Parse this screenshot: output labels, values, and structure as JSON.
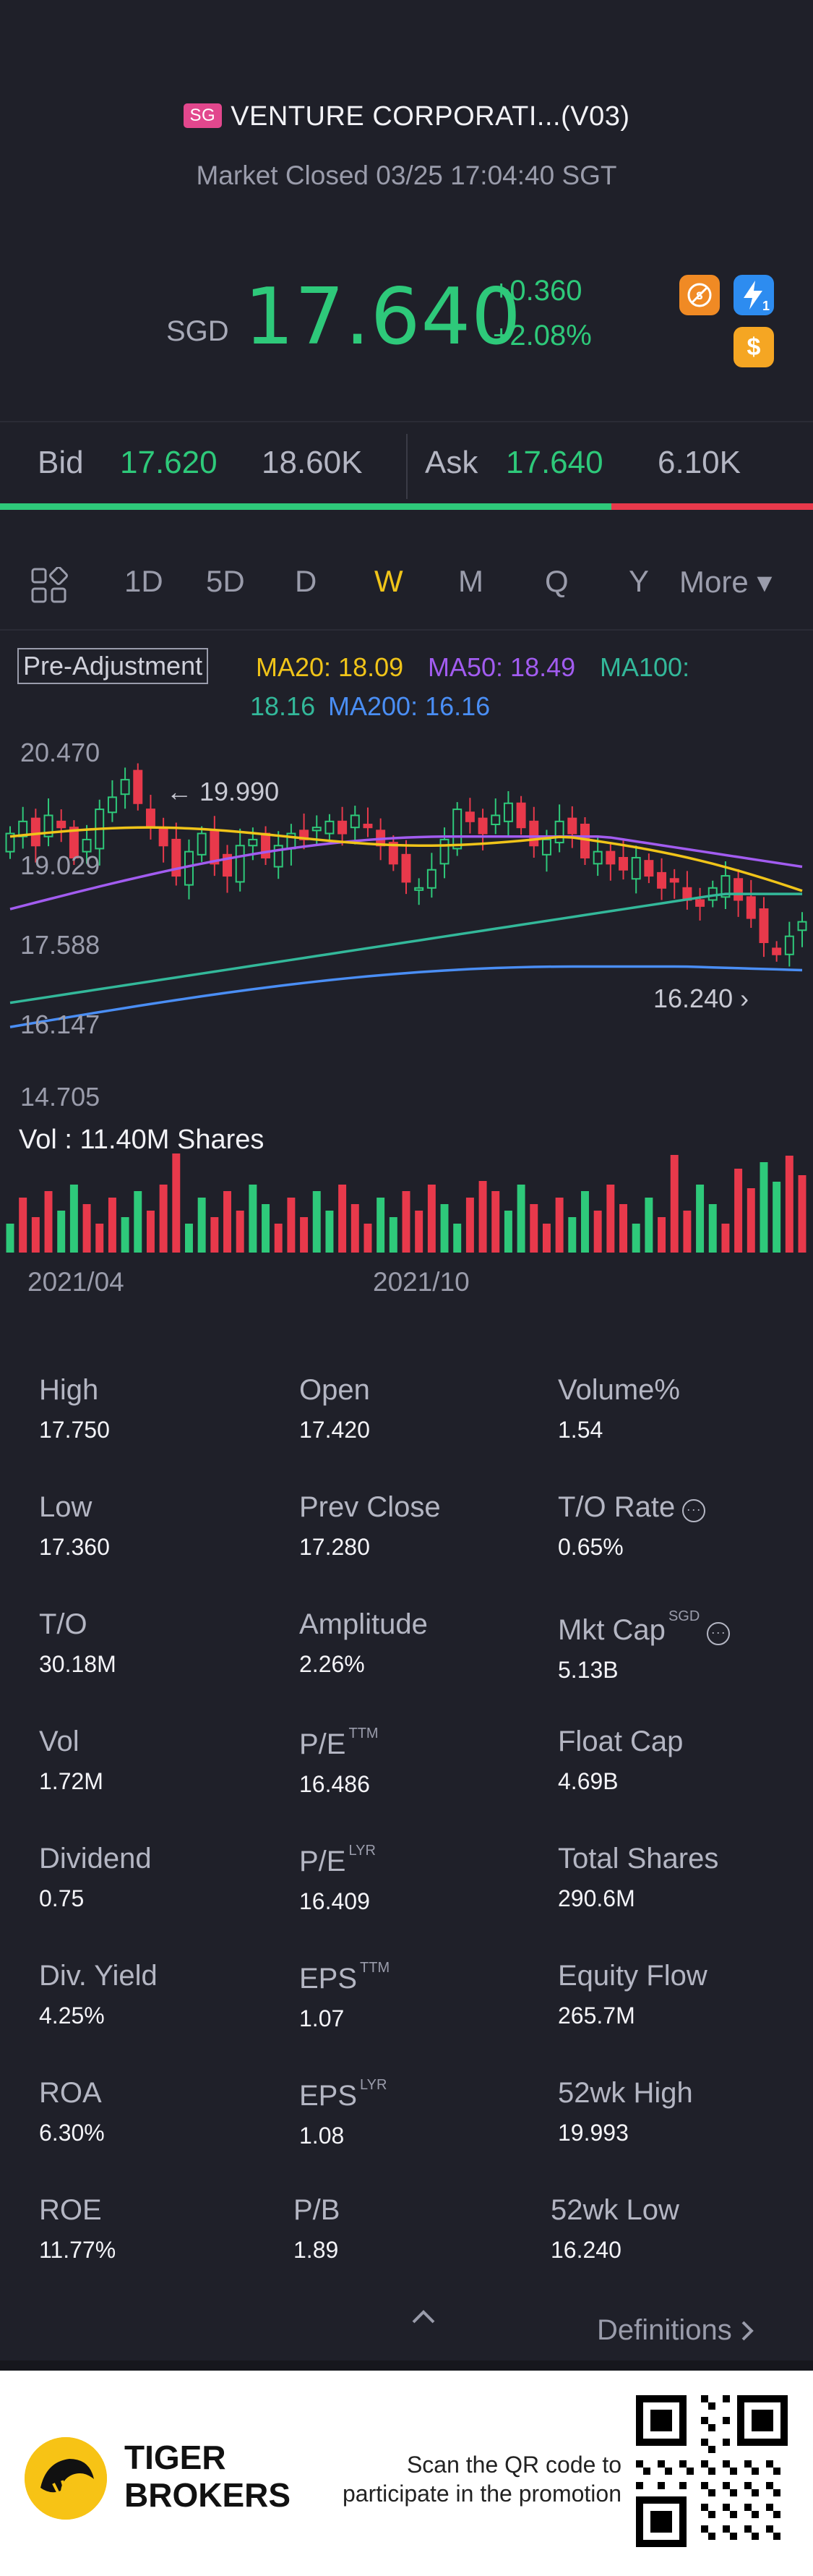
{
  "header": {
    "market_badge": "SG",
    "title": "VENTURE CORPORATI...(V03)",
    "status": "Market Closed 03/25 17:04:40 SGT"
  },
  "quote": {
    "currency": "SGD",
    "price": "17.640",
    "change": "+0.360",
    "change_pct": "+2.08%",
    "price_color": "#2ec97a"
  },
  "badges": {
    "shortsale_icon": "no-short-sell-icon",
    "flash_icon": "lightning-icon",
    "flash_count": "1",
    "dollar_icon": "dollar-icon",
    "dollar_symbol": "$"
  },
  "bidask": {
    "bid_label": "Bid",
    "bid_price": "17.620",
    "bid_vol": "18.60K",
    "ask_label": "Ask",
    "ask_price": "17.640",
    "ask_vol": "6.10K",
    "bid_ratio": 0.752
  },
  "tabs": {
    "items": [
      "1D",
      "5D",
      "D",
      "W",
      "M",
      "Q",
      "Y"
    ],
    "active": "W",
    "more": "More ▾"
  },
  "chart": {
    "pre_adjustment": "Pre-Adjustment",
    "ma20": "MA20: 18.09",
    "ma50": "MA50: 18.49",
    "ma100": "MA100:",
    "ma100_value": "18.16",
    "ma200": "MA200: 16.16",
    "y_ticks": [
      "20.470",
      "19.029",
      "17.588",
      "16.147",
      "14.705"
    ],
    "high_marker": "19.990",
    "low_marker": "16.240",
    "vol_label": "Vol  : 11.40M Shares",
    "dates": [
      "2021/04",
      "2021/10"
    ]
  },
  "chart_data": {
    "type": "candlestick",
    "ylim": [
      14.705,
      20.47
    ],
    "series_legend": [
      "MA20",
      "MA50",
      "MA100",
      "MA200"
    ]
  },
  "stats": {
    "rows": [
      [
        {
          "label": "High",
          "value": "17.750"
        },
        {
          "label": "Open",
          "value": "17.420"
        },
        {
          "label": "Volume%",
          "value": "1.54"
        }
      ],
      [
        {
          "label": "Low",
          "value": "17.360"
        },
        {
          "label": "Prev Close",
          "value": "17.280"
        },
        {
          "label": "T/O Rate",
          "value": "0.65%"
        }
      ],
      [
        {
          "label": "T/O",
          "value": "30.18M"
        },
        {
          "label": "Amplitude",
          "value": "2.26%"
        },
        {
          "label": "Mkt Cap",
          "value": "5.13B"
        }
      ],
      [
        {
          "label": "Vol",
          "value": "1.72M"
        },
        {
          "label": "P/E",
          "value": "16.486"
        },
        {
          "label": "Float Cap",
          "value": "4.69B"
        }
      ],
      [
        {
          "label": "Dividend",
          "value": "0.75"
        },
        {
          "label": "P/E",
          "value": "16.409"
        },
        {
          "label": "Total Shares",
          "value": "290.6M"
        }
      ],
      [
        {
          "label": "Div. Yield",
          "value": "4.25%"
        },
        {
          "label": "EPS",
          "value": "1.07"
        },
        {
          "label": "Equity Flow",
          "value": "265.7M"
        }
      ],
      [
        {
          "label": "ROA",
          "value": "6.30%"
        },
        {
          "label": "EPS",
          "value": "1.08"
        },
        {
          "label": "52wk High",
          "value": "19.993"
        }
      ],
      [
        {
          "label": "ROE",
          "value": "11.77%"
        },
        {
          "label": "P/B",
          "value": "1.89"
        },
        {
          "label": "52wk Low",
          "value": "16.240"
        }
      ]
    ],
    "sup_ttm": "TTM",
    "sup_lyr": "LYR",
    "sup_sgd": "SGD",
    "info_dots": "···",
    "definitions": "Definitions",
    "caret": "^"
  },
  "footer": {
    "brand_line1": "TIGER",
    "brand_line2": "BROKERS",
    "promo_line1": "Scan the QR code to",
    "promo_line2": "participate in the promotion"
  }
}
